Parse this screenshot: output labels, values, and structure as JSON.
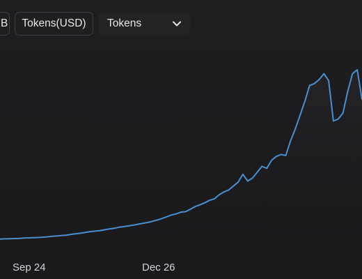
{
  "toolbar": {
    "partial_chip_label": "B",
    "usd_toggle_label": "Tokens(USD)",
    "unit_select": {
      "selected": "Tokens",
      "icon": "chevron-down-icon"
    }
  },
  "colors": {
    "background": "#1c1c1f",
    "line": "#4a8fd0",
    "chip_border": "#3d3d42",
    "text": "#e8e8ea"
  },
  "chart_data": {
    "type": "line",
    "title": "",
    "xlabel": "",
    "ylabel": "",
    "x_tick_labels": [
      "Sep 24",
      "Dec 26"
    ],
    "grid": false,
    "legend": "none",
    "series": [
      {
        "values": [
          0.2,
          0.4,
          0.5,
          0.7,
          0.8,
          1.2,
          1.4,
          1.6,
          1.8,
          2.1,
          2.5,
          3.0,
          3.3,
          3.8,
          4.2,
          5.0,
          5.6,
          6.2,
          7.0,
          7.8,
          8.2,
          8.8,
          9.6,
          10.5,
          11.2,
          12.2,
          12.8,
          13.5,
          14.3,
          15.2,
          16.2,
          17.0,
          18.2,
          19.5,
          21.0,
          22.8,
          24.6,
          25.8,
          27.5,
          28.0,
          30.5,
          33.2,
          35.0,
          37.0,
          39.5,
          41.0,
          45.0,
          48.0,
          50.0,
          54.0,
          58.0,
          66.0,
          59.0,
          62.0,
          68.0,
          74.0,
          72.0,
          80.0,
          84.0,
          86.0,
          85.0,
          100.0,
          112.0,
          126.0,
          140.0,
          156.0,
          158.0,
          162.0,
          168.0,
          161.0,
          120.0,
          122.0,
          128.0,
          150.0,
          168.0,
          172.0,
          142.0
        ]
      }
    ]
  }
}
